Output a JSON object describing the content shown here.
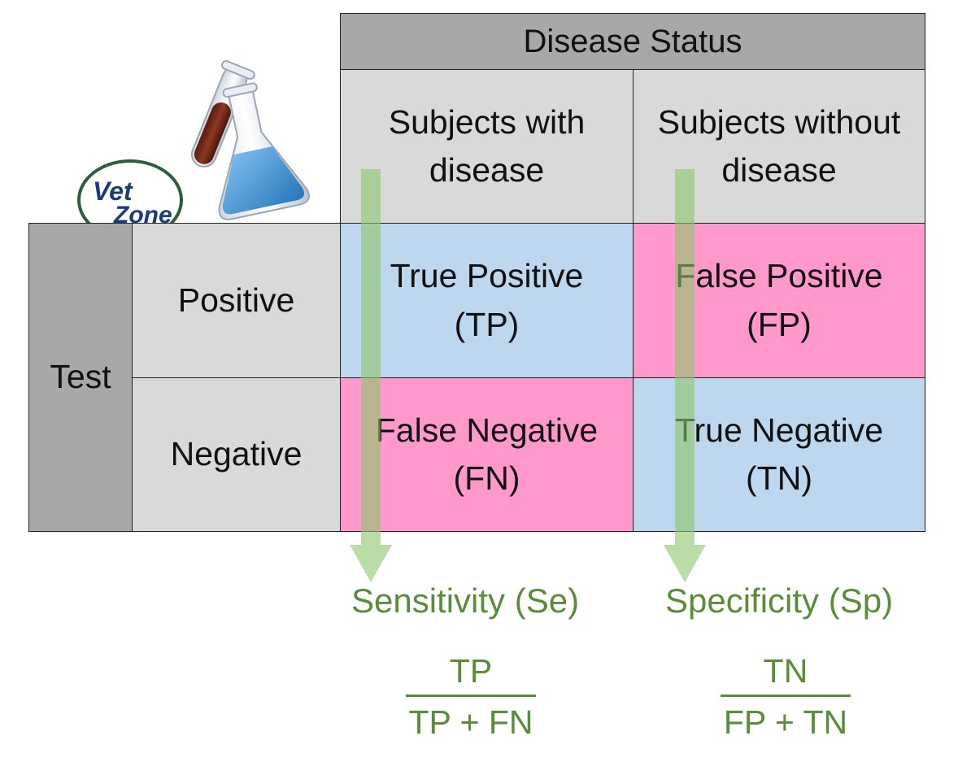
{
  "table": {
    "header": "Disease Status",
    "col_with": [
      "Subjects with",
      "disease"
    ],
    "col_without": [
      "Subjects without",
      "disease"
    ],
    "row_group": "Test",
    "row_positive": "Positive",
    "row_negative": "Negative",
    "tp": [
      "True Positive",
      "(TP)"
    ],
    "fp": [
      "False Positive",
      "(FP)"
    ],
    "fn": [
      "False Negative",
      "(FN)"
    ],
    "tn": [
      "True Negative",
      "(TN)"
    ]
  },
  "metrics": {
    "sensitivity": {
      "label": "Sensitivity (Se)",
      "numerator": "TP",
      "denominator": "TP + FN"
    },
    "specificity": {
      "label": "Specificity (Sp)",
      "numerator": "TN",
      "denominator": "FP + TN"
    }
  },
  "logo": {
    "text_1": "Vet",
    "text_2": "Zone"
  },
  "colors": {
    "header_gray": "#a8a8a8",
    "cell_gray": "#d9d9d9",
    "true_blue": "#bdd7ee",
    "false_pink": "#ff99cc",
    "arrow_green": "#a9d18e",
    "metric_green": "#5b8c3a"
  },
  "icons": [
    "test-tube-icon",
    "flask-icon",
    "vetzone-logo"
  ]
}
